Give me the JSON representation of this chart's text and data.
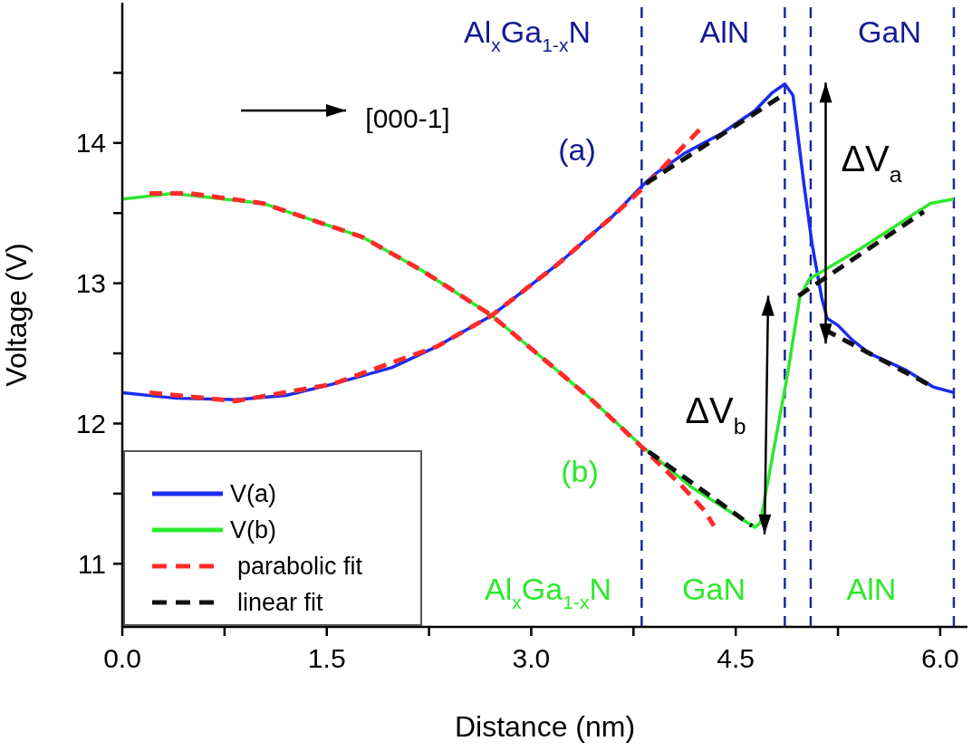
{
  "chart_data": {
    "type": "line",
    "xlabel": "Distance (nm)",
    "ylabel": "Voltage (V)",
    "xlim": [
      0,
      6.2
    ],
    "ylim": [
      10.55,
      15
    ],
    "xticks": [
      {
        "value": 0,
        "label": "0.0"
      },
      {
        "value": 0.75,
        "label": null
      },
      1.5,
      {
        "value": 2.25,
        "label": null
      },
      {
        "value": 3,
        "label": "3.0"
      },
      {
        "value": 3.75,
        "label": null
      },
      4.5,
      {
        "value": 5.25,
        "label": null
      },
      {
        "value": 6,
        "label": "6.0"
      }
    ],
    "yticks": [
      11,
      {
        "value": 11.5,
        "label": null
      },
      12,
      {
        "value": 12.5,
        "label": null
      },
      13,
      {
        "value": 13.5,
        "label": null
      },
      14,
      {
        "value": 14.5,
        "label": null
      }
    ],
    "legend": "bottom left",
    "marker": "none",
    "series": [
      {
        "name": "V(a)",
        "color": "#1a2cf0",
        "line_style": "solid",
        "x": [
          0,
          0.4,
          0.83,
          1.2,
          1.54,
          1.98,
          2.31,
          2.71,
          3.2,
          3.6,
          3.81,
          3.91,
          4.13,
          4.4,
          4.64,
          4.77,
          4.86,
          4.92,
          5.0,
          5.06,
          5.13,
          5.17,
          5.25,
          5.35,
          5.48,
          5.75,
          5.95,
          6.1
        ],
        "values": [
          12.22,
          12.18,
          12.17,
          12.2,
          12.28,
          12.4,
          12.55,
          12.77,
          13.14,
          13.48,
          13.69,
          13.78,
          13.93,
          14.07,
          14.23,
          14.36,
          14.42,
          14.34,
          13.71,
          13.28,
          12.9,
          12.75,
          12.7,
          12.6,
          12.5,
          12.38,
          12.26,
          12.22
        ]
      },
      {
        "name": "V(b)",
        "color": "#2ee82e",
        "line_style": "solid",
        "x": [
          0,
          0.37,
          1.03,
          1.76,
          2.2,
          2.71,
          3.09,
          3.42,
          3.81,
          4.17,
          4.64,
          4.68,
          4.88,
          4.97,
          5.04,
          5.42,
          5.93,
          6.1
        ],
        "values": [
          13.6,
          13.64,
          13.57,
          13.33,
          13.09,
          12.77,
          12.46,
          12.19,
          11.84,
          11.55,
          11.26,
          11.29,
          12.35,
          12.9,
          13.03,
          13.25,
          13.57,
          13.6
        ]
      },
      {
        "name": "parabolic fit",
        "color": "#ff2a2a",
        "line_style": "dashed",
        "x": [
          0.2,
          0.83,
          1.54,
          2.31,
          2.71,
          3.2,
          3.6,
          3.81,
          4.0,
          4.24,
          null,
          0.2,
          0.5,
          1.03,
          1.76,
          2.2,
          2.71,
          3.09,
          3.42,
          3.76,
          4.09,
          4.27,
          4.34
        ],
        "values": [
          12.22,
          12.16,
          12.28,
          12.55,
          12.77,
          13.14,
          13.48,
          13.67,
          13.86,
          14.1,
          null,
          13.64,
          13.64,
          13.57,
          13.33,
          13.09,
          12.77,
          12.46,
          12.19,
          11.88,
          11.57,
          11.38,
          11.27
        ]
      },
      {
        "name": "linear fit",
        "color": "#111111",
        "line_style": "dashed",
        "x": [
          3.84,
          4.86,
          null,
          5.15,
          5.95,
          null,
          3.86,
          4.62,
          null,
          4.96,
          5.88
        ],
        "values": [
          13.71,
          14.35,
          null,
          12.67,
          12.26,
          null,
          11.8,
          11.27,
          null,
          12.91,
          13.51
        ]
      }
    ],
    "ref_lines": [
      {
        "axis": "x",
        "value": 3.81,
        "color": "#1c2a9a",
        "line_style": "dashed"
      },
      {
        "axis": "x",
        "value": 4.86,
        "color": "#1c2a9a",
        "line_style": "dashed"
      },
      {
        "axis": "x",
        "value": 5.05,
        "color": "#1c2a9a",
        "line_style": "dashed"
      },
      {
        "axis": "x",
        "value": 6.1,
        "color": "#1c2a9a",
        "line_style": "dashed"
      }
    ],
    "annotations": [
      "Al$_{x}$Ga$_{1-x}$N",
      "AlN",
      "GaN",
      "(a)",
      "(b)",
      "Al$_{x}$Ga$_{1-x}$N",
      "GaN",
      "AlN",
      "ΔV$_{a}$",
      "ΔV$_{b}$",
      "[000-1]"
    ]
  }
}
